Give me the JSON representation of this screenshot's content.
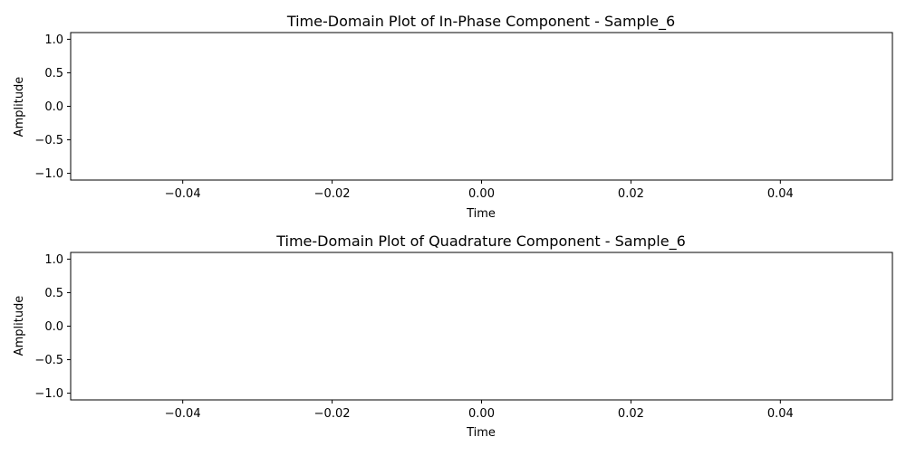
{
  "chart_data": [
    {
      "type": "line",
      "title": "Time-Domain Plot of In-Phase Component - Sample_6",
      "xlabel": "Time",
      "ylabel": "Amplitude",
      "xlim": [
        -0.055,
        0.055
      ],
      "ylim": [
        -1.1,
        1.1
      ],
      "xticks": [
        -0.04,
        -0.02,
        0.0,
        0.02,
        0.04
      ],
      "xtick_labels": [
        "−0.04",
        "−0.02",
        "0.00",
        "0.02",
        "0.04"
      ],
      "yticks": [
        -1.0,
        -0.5,
        0.0,
        0.5,
        1.0
      ],
      "ytick_labels": [
        "−1.0",
        "−0.5",
        "0.0",
        "0.5",
        "1.0"
      ],
      "grid": false,
      "series": [
        {
          "x": [],
          "y": [],
          "color": "#1f77b4"
        }
      ]
    },
    {
      "type": "line",
      "title": "Time-Domain Plot of Quadrature Component - Sample_6",
      "xlabel": "Time",
      "ylabel": "Amplitude",
      "xlim": [
        -0.055,
        0.055
      ],
      "ylim": [
        -1.1,
        1.1
      ],
      "xticks": [
        -0.04,
        -0.02,
        0.0,
        0.02,
        0.04
      ],
      "xtick_labels": [
        "−0.04",
        "−0.02",
        "0.00",
        "0.02",
        "0.04"
      ],
      "yticks": [
        -1.0,
        -0.5,
        0.0,
        0.5,
        1.0
      ],
      "ytick_labels": [
        "−1.0",
        "−0.5",
        "0.0",
        "0.5",
        "1.0"
      ],
      "grid": false,
      "series": [
        {
          "x": [],
          "y": [],
          "color": "#1f77b4"
        }
      ]
    }
  ]
}
